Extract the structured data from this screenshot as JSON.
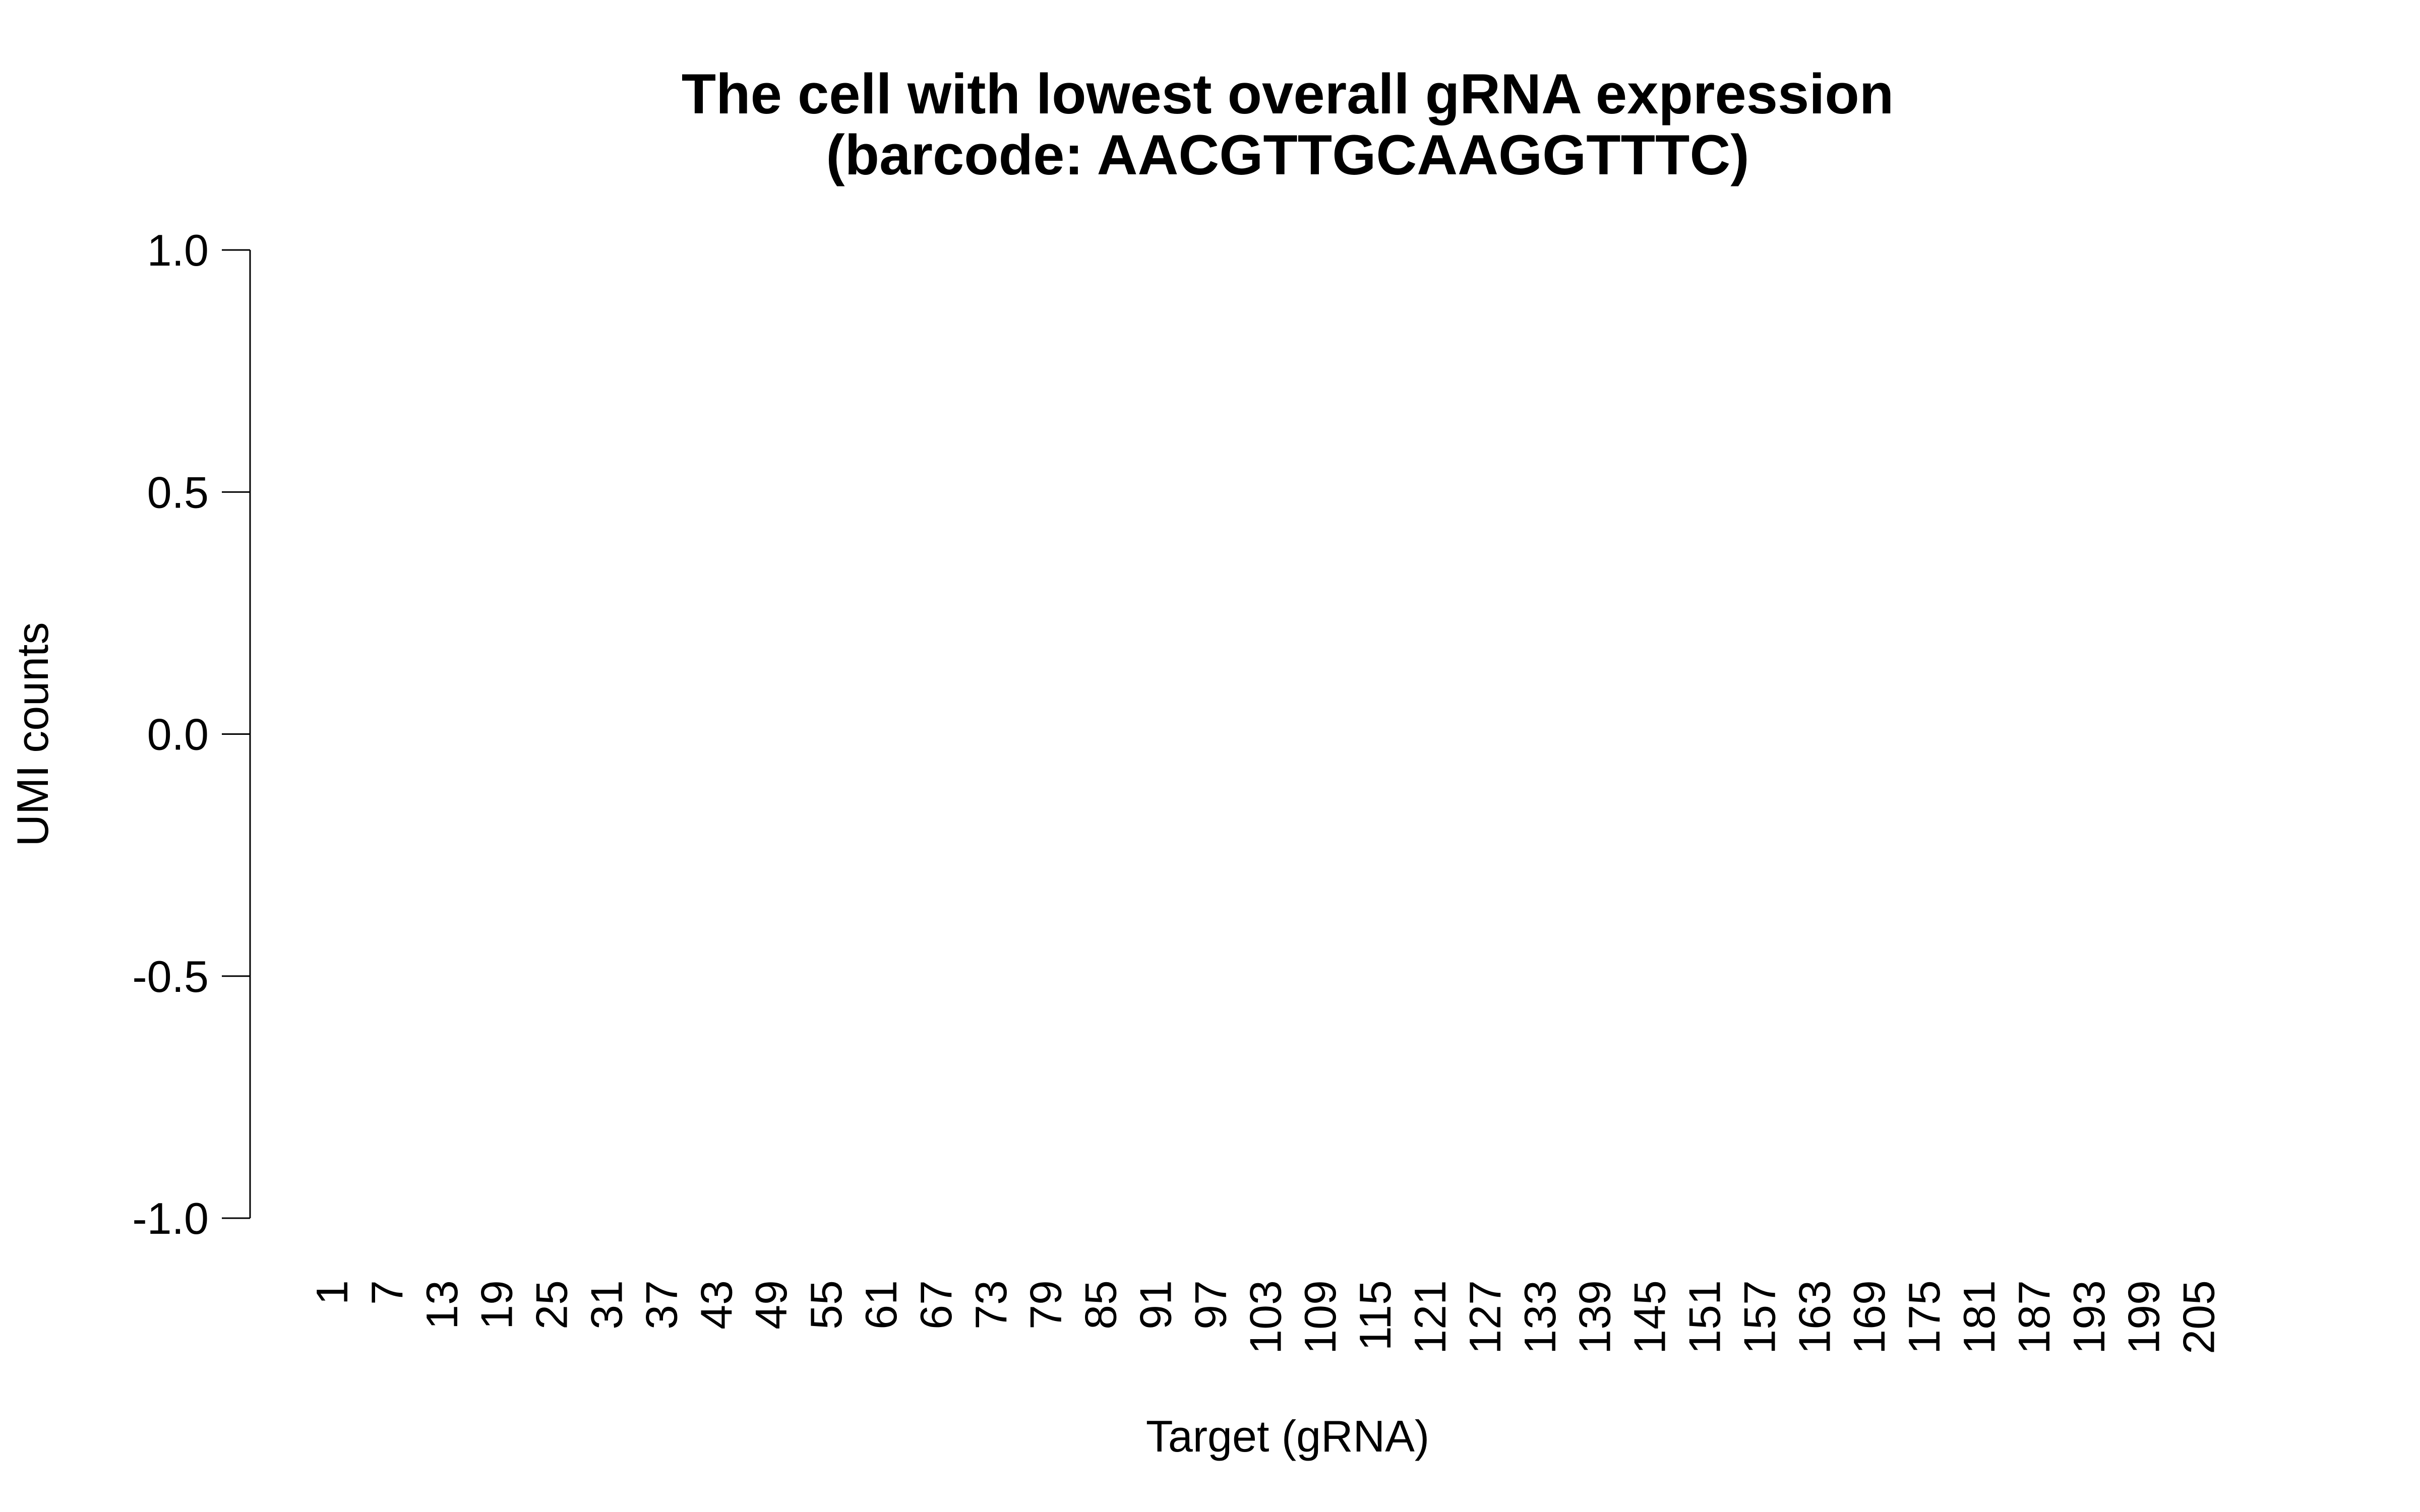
{
  "chart_data": {
    "type": "bar",
    "title": "The cell with lowest overall gRNA expression",
    "subtitle": "(barcode: AACGTTGCAAGGTTTC)",
    "x_label": "Target (gRNA)",
    "y_label": "UMI counts",
    "color": "#ffffff",
    "categories": [
      "1",
      null,
      null,
      null,
      null,
      null,
      "7",
      null,
      null,
      null,
      null,
      null,
      "13",
      null,
      null,
      null,
      null,
      null,
      "19",
      null,
      null,
      null,
      null,
      null,
      "25",
      null,
      null,
      null,
      null,
      null,
      "31",
      null,
      null,
      null,
      null,
      null,
      "37",
      null,
      null,
      null,
      null,
      null,
      "43",
      null,
      null,
      null,
      null,
      null,
      "49",
      null,
      null,
      null,
      null,
      null,
      "55",
      null,
      null,
      null,
      null,
      null,
      "61",
      null,
      null,
      null,
      null,
      null,
      "67",
      null,
      null,
      null,
      null,
      null,
      "73",
      null,
      null,
      null,
      null,
      null,
      "79",
      null,
      null,
      null,
      null,
      null,
      "85",
      null,
      null,
      null,
      null,
      null,
      "91",
      null,
      null,
      null,
      null,
      null,
      "97",
      null,
      null,
      null,
      null,
      null,
      "103",
      null,
      null,
      null,
      null,
      null,
      "109",
      null,
      null,
      null,
      null,
      null,
      "115",
      null,
      null,
      null,
      null,
      null,
      "121",
      null,
      null,
      null,
      null,
      null,
      "127",
      null,
      null,
      null,
      null,
      null,
      "133",
      null,
      null,
      null,
      null,
      null,
      "139",
      null,
      null,
      null,
      null,
      null,
      "145",
      null,
      null,
      null,
      null,
      null,
      "151",
      null,
      null,
      null,
      null,
      null,
      "157",
      null,
      null,
      null,
      null,
      null,
      "163",
      null,
      null,
      null,
      null,
      null,
      "169",
      null,
      null,
      null,
      null,
      null,
      "175",
      null,
      null,
      null,
      null,
      null,
      "181",
      null,
      null,
      null,
      null,
      null,
      "187",
      null,
      null,
      null,
      null,
      null,
      "193",
      null,
      null,
      null,
      null,
      null,
      "199",
      null,
      null,
      null,
      null,
      null,
      "205",
      null,
      null,
      null,
      null,
      null
    ],
    "values": [
      0,
      0,
      0,
      0,
      0,
      0,
      0,
      0,
      0,
      0,
      0,
      0,
      0,
      0,
      0,
      0,
      0,
      0,
      0,
      0,
      0,
      0,
      0,
      0,
      0,
      0,
      0,
      0,
      0,
      0,
      0,
      0,
      0,
      0,
      0,
      0,
      0,
      0,
      0,
      0,
      0,
      0,
      0,
      0,
      0,
      0,
      0,
      0,
      0,
      0,
      0,
      0,
      0,
      0,
      0,
      0,
      0,
      0,
      0,
      0,
      0,
      0,
      0,
      0,
      0,
      0,
      0,
      0,
      0,
      0,
      0,
      0,
      0,
      0,
      0,
      0,
      0,
      0,
      0,
      0,
      0,
      0,
      0,
      0,
      0,
      0,
      0,
      0,
      0,
      0,
      0,
      0,
      0,
      0,
      0,
      0,
      0,
      0,
      0,
      0,
      0,
      0,
      0,
      0,
      0,
      0,
      0,
      0,
      0,
      0,
      0,
      0,
      0,
      0,
      0,
      0,
      0,
      0,
      0,
      0,
      0,
      0,
      0,
      0,
      0,
      0,
      0,
      0,
      0,
      0,
      0,
      0,
      0,
      0,
      0,
      0,
      0,
      0,
      0,
      0,
      0,
      0,
      0,
      0,
      0,
      0,
      0,
      0,
      0,
      0,
      0,
      0,
      0,
      0,
      0,
      0,
      0,
      0,
      0,
      0,
      0,
      0,
      0,
      0,
      0,
      0,
      0,
      0,
      0,
      0,
      0,
      0,
      0,
      0,
      0,
      0,
      0,
      0,
      0,
      0,
      0,
      0,
      0,
      0,
      0,
      0,
      0,
      0,
      0,
      0,
      0,
      0,
      0,
      0,
      0,
      0,
      0,
      0,
      0,
      0,
      0,
      0,
      0,
      0,
      0,
      0,
      0,
      0,
      0,
      0
    ],
    "ylim": [
      -1,
      1
    ],
    "yticks": [
      {
        "value": -1,
        "label": "-1.0"
      },
      -0.5,
      {
        "value": 0,
        "label": "0.0"
      },
      0.5,
      {
        "value": 1,
        "label": "1.0"
      }
    ]
  }
}
